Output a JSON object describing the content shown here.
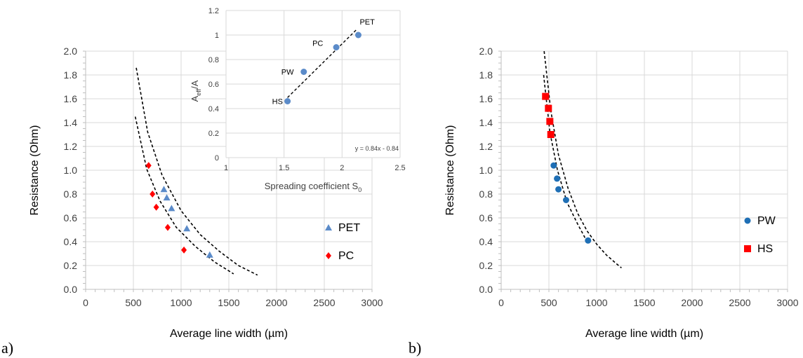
{
  "chart_data": [
    {
      "panel": "a)",
      "type": "scatter",
      "xlabel": "Average line width (µm)",
      "ylabel": "Resistance (Ohm)",
      "xlim": [
        0,
        3000
      ],
      "ylim": [
        0,
        2.0
      ],
      "xticks": [
        0,
        500,
        1000,
        1500,
        2000,
        2500,
        3000
      ],
      "yticks": [
        "0.0",
        "0.2",
        "0.4",
        "0.6",
        "0.8",
        "1.0",
        "1.2",
        "1.4",
        "1.6",
        "1.8",
        "2.0"
      ],
      "grid": true,
      "legend": "right",
      "series": [
        {
          "name": "PET",
          "marker": "triangle",
          "color": "#5b8bc9",
          "x": [
            820,
            850,
            900,
            1060,
            1300
          ],
          "y": [
            0.84,
            0.77,
            0.68,
            0.51,
            0.29
          ]
        },
        {
          "name": "PC",
          "marker": "diamond",
          "color": "#ff0000",
          "x": [
            660,
            700,
            740,
            860,
            1030
          ],
          "y": [
            1.04,
            0.8,
            0.69,
            0.52,
            0.33
          ]
        }
      ],
      "fits": [
        {
          "x": [
            530,
            650,
            800,
            1000,
            1200,
            1400,
            1600,
            1800
          ],
          "y": [
            1.86,
            1.32,
            0.96,
            0.66,
            0.46,
            0.32,
            0.2,
            0.12
          ]
        },
        {
          "x": [
            520,
            640,
            780,
            950,
            1150,
            1350,
            1550
          ],
          "y": [
            1.45,
            1.01,
            0.74,
            0.52,
            0.36,
            0.23,
            0.13
          ]
        }
      ],
      "inset": {
        "type": "scatter",
        "xlabel": "Spreading coefficient S",
        "xlabel_sub": "0",
        "ylabel": "A",
        "ylabel_sub": "eff",
        "ylabel_tail": "/A",
        "xlim": [
          1,
          2.5
        ],
        "ylim": [
          0,
          1.2
        ],
        "xticks": [
          "1",
          "1.5",
          "2",
          "2.5"
        ],
        "yticks": [
          "0",
          "0.2",
          "0.4",
          "0.6",
          "0.8",
          "1",
          "1.2"
        ],
        "color": "#5b8bc9",
        "points": [
          {
            "label": "HS",
            "x": 1.53,
            "y": 0.46
          },
          {
            "label": "PW",
            "x": 1.67,
            "y": 0.7
          },
          {
            "label": "PC",
            "x": 1.95,
            "y": 0.9
          },
          {
            "label": "PET",
            "x": 2.14,
            "y": 1.0
          }
        ],
        "fit": {
          "x": [
            1.53,
            2.12
          ],
          "y": [
            0.49,
            1.04
          ]
        },
        "equation": "y = 0.84x - 0.84"
      }
    },
    {
      "panel": "b)",
      "type": "scatter",
      "xlabel": "Average line width (µm)",
      "ylabel": "Resistance (Ohm)",
      "xlim": [
        0,
        3000
      ],
      "ylim": [
        0,
        2.0
      ],
      "xticks": [
        0,
        500,
        1000,
        1500,
        2000,
        2500,
        3000
      ],
      "yticks": [
        "0.0",
        "0.2",
        "0.4",
        "0.6",
        "0.8",
        "1.0",
        "1.2",
        "1.4",
        "1.6",
        "1.8",
        "2.0"
      ],
      "grid": true,
      "legend": "right",
      "series": [
        {
          "name": "PW",
          "marker": "circle",
          "color": "#1f6fb5",
          "x": [
            550,
            585,
            600,
            680,
            910
          ],
          "y": [
            1.04,
            0.93,
            0.84,
            0.75,
            0.41
          ]
        },
        {
          "name": "HS",
          "marker": "square",
          "color": "#ff0000",
          "x": [
            465,
            495,
            510,
            520
          ],
          "y": [
            1.62,
            1.52,
            1.41,
            1.3
          ]
        }
      ],
      "fits": [
        {
          "x": [
            450,
            520,
            600,
            700,
            800,
            900,
            1000,
            1100,
            1200,
            1260
          ],
          "y": [
            2.0,
            1.5,
            1.13,
            0.85,
            0.64,
            0.49,
            0.38,
            0.29,
            0.22,
            0.18
          ]
        },
        {
          "x": [
            445,
            510,
            590,
            690,
            800,
            900
          ],
          "y": [
            1.8,
            1.32,
            1.0,
            0.73,
            0.55,
            0.4
          ]
        }
      ]
    }
  ]
}
